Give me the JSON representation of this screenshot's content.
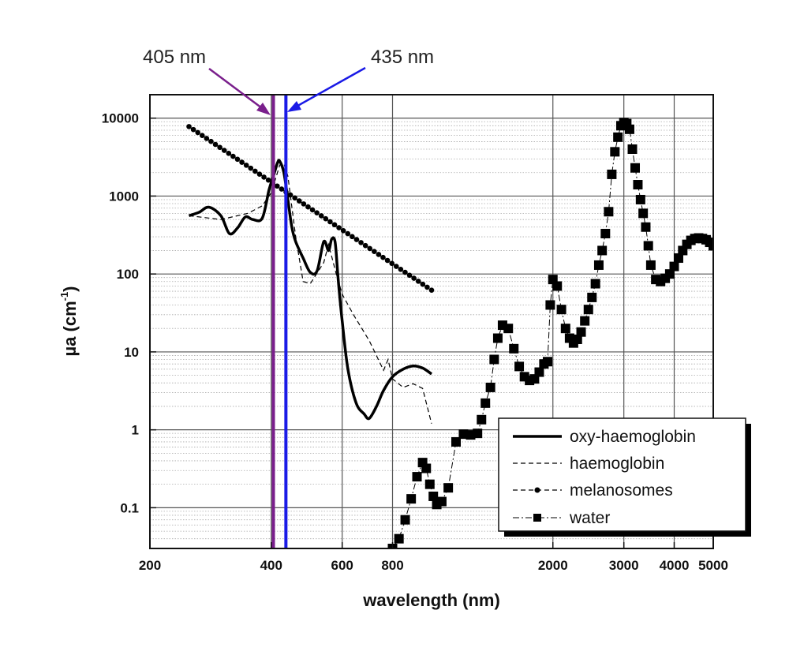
{
  "chart_data": {
    "type": "line",
    "title": "",
    "xlabel": "wavelength (nm)",
    "ylabel_main": "µa (cm",
    "ylabel_sup": "-1",
    "ylabel_close": ")",
    "xscale": "log",
    "yscale": "log",
    "xlim": [
      200,
      5000
    ],
    "ylim": [
      0.03,
      20000
    ],
    "grid": true,
    "x_ticks": [
      {
        "value": 200,
        "label": "200"
      },
      {
        "value": 400,
        "label": "400"
      },
      {
        "value": 600,
        "label": "600"
      },
      {
        "value": 800,
        "label": "800"
      },
      {
        "value": 2000,
        "label": "2000"
      },
      {
        "value": 3000,
        "label": "3000"
      },
      {
        "value": 4000,
        "label": "4000"
      },
      {
        "value": 5000,
        "label": "5000"
      }
    ],
    "y_ticks": [
      {
        "value": 0.1,
        "label": "0.1"
      },
      {
        "value": 1,
        "label": "1"
      },
      {
        "value": 10,
        "label": "10"
      },
      {
        "value": 100,
        "label": "100"
      },
      {
        "value": 1000,
        "label": "1000"
      },
      {
        "value": 10000,
        "label": "10000"
      }
    ],
    "vlines": [
      {
        "x": 405,
        "label": "405 nm",
        "color": "#7a1f8c"
      },
      {
        "x": 435,
        "label": "435 nm",
        "color": "#1a1ae6"
      }
    ],
    "legend_position": "bottom-right",
    "series": [
      {
        "name": "oxy-haemoglobin",
        "style": "solid-thick",
        "x": [
          250,
          265,
          280,
          300,
          315,
          330,
          345,
          360,
          380,
          395,
          405,
          415,
          420,
          430,
          440,
          450,
          460,
          480,
          500,
          520,
          540,
          555,
          565,
          576,
          585,
          590,
          600,
          620,
          650,
          680,
          700,
          730,
          760,
          800,
          850,
          900,
          950,
          1000
        ],
        "y": [
          560,
          620,
          720,
          560,
          330,
          390,
          540,
          500,
          520,
          1200,
          1800,
          2700,
          2800,
          2000,
          900,
          400,
          260,
          160,
          105,
          110,
          260,
          200,
          280,
          260,
          100,
          60,
          25,
          6,
          2.2,
          1.6,
          1.4,
          2.0,
          3.2,
          4.8,
          6.0,
          6.6,
          6.2,
          5.2
        ]
      },
      {
        "name": "haemoglobin",
        "style": "dashed-thin",
        "x": [
          250,
          300,
          350,
          380,
          400,
          420,
          430,
          440,
          460,
          480,
          500,
          540,
          555,
          580,
          600,
          640,
          700,
          760,
          780,
          800,
          850,
          900,
          950,
          1000
        ],
        "y": [
          560,
          500,
          600,
          750,
          1100,
          2500,
          2600,
          1800,
          300,
          80,
          75,
          140,
          240,
          100,
          55,
          30,
          14,
          5.8,
          8.0,
          4.5,
          3.5,
          3.9,
          3.4,
          1.2
        ]
      },
      {
        "name": "melanosomes",
        "style": "dashed-dots",
        "x": [
          250,
          1000
        ],
        "y": [
          7800,
          62
        ],
        "marker_count": 56
      },
      {
        "name": "water",
        "style": "dashdot-squares",
        "x": [
          800,
          830,
          860,
          890,
          920,
          950,
          970,
          990,
          1010,
          1030,
          1060,
          1100,
          1150,
          1200,
          1250,
          1300,
          1330,
          1360,
          1400,
          1430,
          1460,
          1500,
          1550,
          1600,
          1650,
          1700,
          1750,
          1800,
          1850,
          1900,
          1940,
          1970,
          2000,
          2050,
          2100,
          2150,
          2200,
          2250,
          2300,
          2350,
          2400,
          2450,
          2500,
          2550,
          2600,
          2650,
          2700,
          2750,
          2800,
          2850,
          2900,
          2950,
          3000,
          3050,
          3100,
          3150,
          3200,
          3250,
          3300,
          3350,
          3400,
          3450,
          3500,
          3600,
          3700,
          3800,
          3900,
          4000,
          4100,
          4200,
          4300,
          4400,
          4500,
          4600,
          4700,
          4800,
          4900,
          5000
        ],
        "y": [
          0.03,
          0.04,
          0.07,
          0.13,
          0.25,
          0.38,
          0.32,
          0.2,
          0.14,
          0.11,
          0.12,
          0.18,
          0.7,
          0.88,
          0.86,
          0.9,
          1.35,
          2.2,
          3.5,
          8.0,
          15.0,
          22.0,
          20.0,
          11.0,
          6.5,
          4.8,
          4.3,
          4.5,
          5.5,
          7.0,
          7.5,
          40.0,
          85.0,
          70.0,
          35.0,
          20.0,
          15.0,
          13.0,
          14.5,
          18.0,
          25.0,
          35.0,
          50.0,
          75.0,
          130.0,
          200.0,
          330.0,
          630.0,
          1900.0,
          3700.0,
          5700.0,
          8000.0,
          8800.0,
          8500.0,
          7200.0,
          4000.0,
          2300.0,
          1400.0,
          900.0,
          600.0,
          400.0,
          230.0,
          130.0,
          85.0,
          80.0,
          88.0,
          100.0,
          125.0,
          160.0,
          200.0,
          240.0,
          270.0,
          285.0,
          290.0,
          285.0,
          275.0,
          255.0,
          230.0
        ]
      }
    ]
  }
}
